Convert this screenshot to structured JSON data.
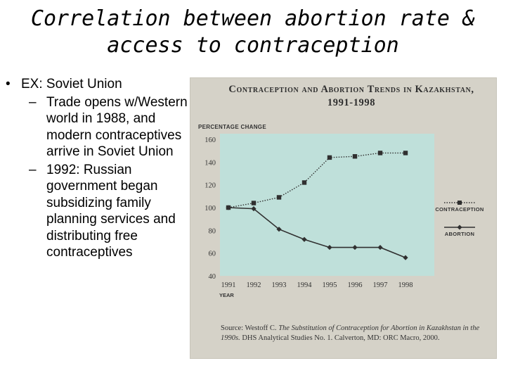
{
  "slide": {
    "title_line1": "Correlation between abortion rate &",
    "title_line2": "access to contraception",
    "bullet1": "EX: Soviet Union",
    "sub1": "Trade opens w/Western world in 1988, and modern contraceptives arrive in Soviet Union",
    "sub2": "1992: Russian government began subsidizing family planning services and distributing free contraceptives",
    "bullet_char": "•",
    "dash_char": "–"
  },
  "figure": {
    "title_line1": "Contraception and Abortion Trends in Kazakhstan,",
    "title_line2": "1991-1998",
    "source_prefix": "Source: Westoff C.",
    "source_italic": "The Substitution of Contraception for Abortion in Kazakhstan in the 1990s.",
    "source_suffix": "DHS Analytical Studies No. 1. Calverton, MD: ORC Macro, 2000."
  },
  "chart_data": {
    "type": "line",
    "title": "Contraception and Abortion Trends in Kazakhstan, 1991-1998",
    "ylabel": "Percentage change",
    "xlabel": "Year",
    "x": [
      1991,
      1992,
      1993,
      1994,
      1995,
      1996,
      1997,
      1998
    ],
    "ylim": [
      40,
      160
    ],
    "yticks": [
      40,
      60,
      80,
      100,
      120,
      140,
      160
    ],
    "grid": false,
    "legend_position": "right",
    "series": [
      {
        "name": "Contraception",
        "values": [
          100,
          104,
          109,
          122,
          144,
          145,
          148,
          148
        ],
        "color": "#303030",
        "marker": "square",
        "line_style": "dotted"
      },
      {
        "name": "Abortion",
        "values": [
          100,
          99,
          81,
          72,
          65,
          65,
          65,
          56
        ],
        "color": "#303030",
        "marker": "diamond",
        "line_style": "solid"
      }
    ],
    "plot_bg": "#bfe0da"
  }
}
